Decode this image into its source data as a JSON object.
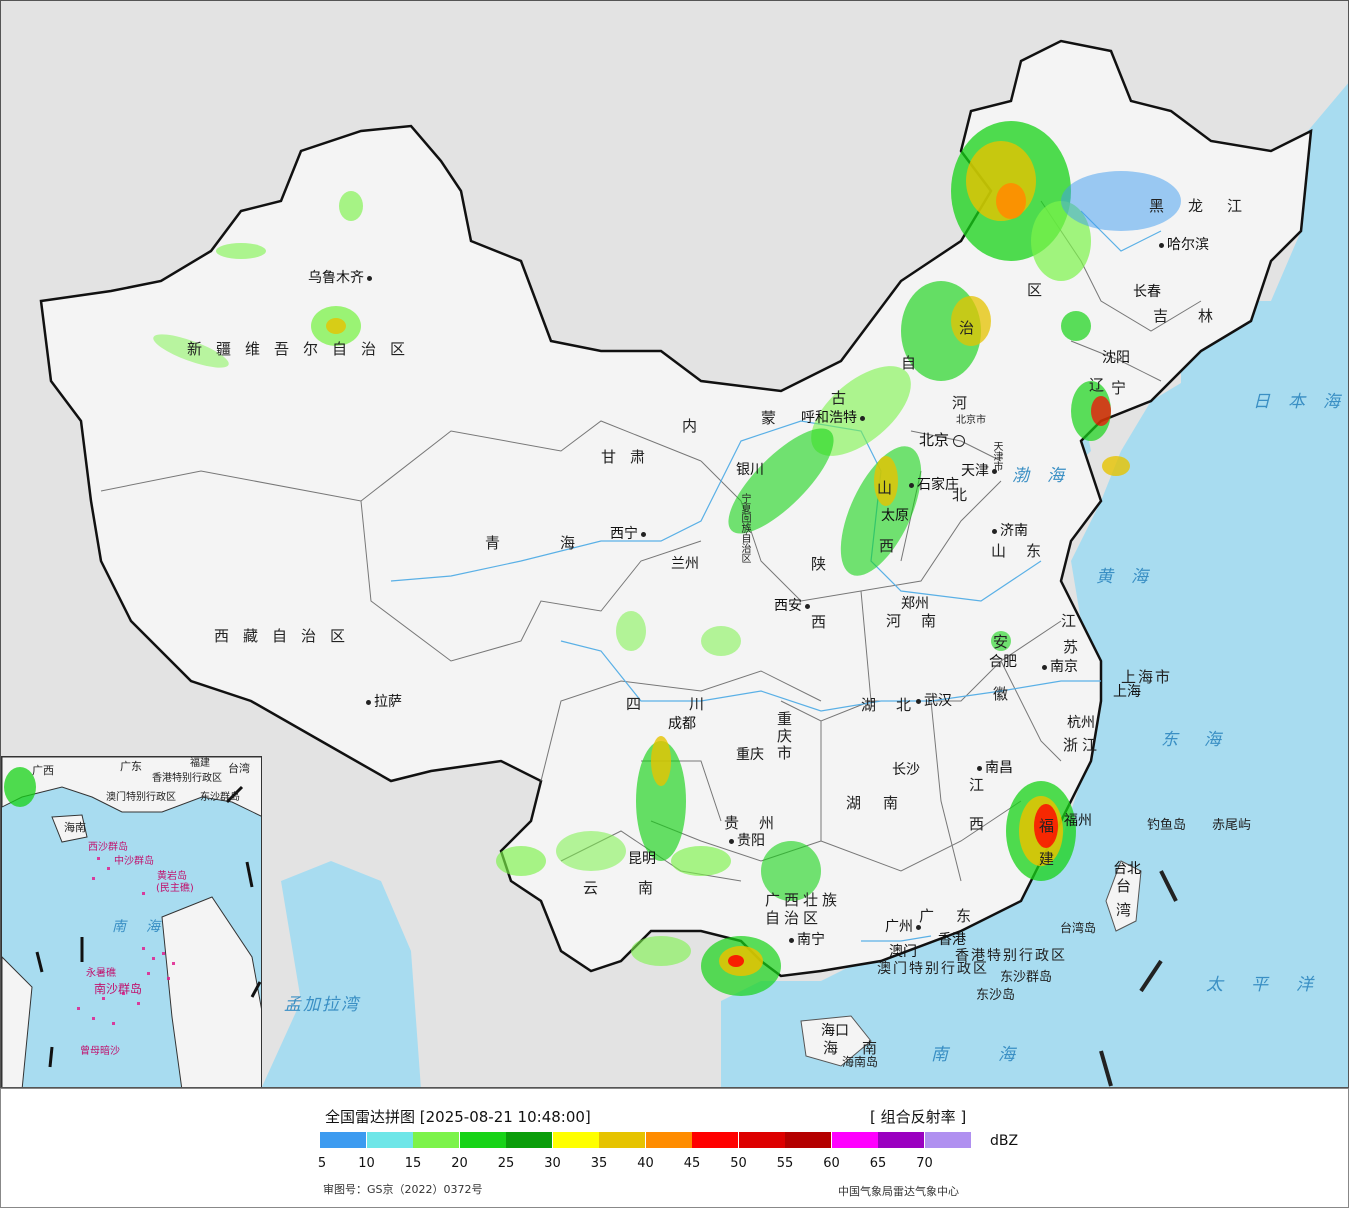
{
  "legend": {
    "title": "全国雷达拼图 [2025-08-21 10:48:00]",
    "product": "[ 组合反射率 ]",
    "unit": "dBZ",
    "colors": [
      "#3d9bf0",
      "#6ee6e8",
      "#7cf34a",
      "#17d317",
      "#0a9d0a",
      "#ffff00",
      "#e6c300",
      "#ff8c00",
      "#ff0000",
      "#dd0000",
      "#b40000",
      "#ff00ff",
      "#9a00c0",
      "#b090f0"
    ],
    "ticks": [
      "5",
      "10",
      "15",
      "20",
      "25",
      "30",
      "35",
      "40",
      "45",
      "50",
      "55",
      "60",
      "65",
      "70"
    ],
    "approval": "审图号：GS京（2022）0372号",
    "agency": "中国气象局雷达气象中心"
  },
  "provinces": {
    "xinjiang": "新疆维吾尔自治区",
    "xizang": "西藏自治区",
    "qinghai": "青海",
    "gansu": "甘肃",
    "neimenggu_1": "内",
    "neimenggu_2": "蒙",
    "neimenggu_3": "古",
    "neimenggu_4": "自",
    "neimenggu_5": "治",
    "neimenggu_6": "区",
    "heilongjiang": "黑龙江",
    "jilin": "吉林",
    "liaoning_1": "辽",
    "liaoning_2": "宁",
    "hebei_1": "河",
    "hebei_2": "北",
    "shanxi_1": "山",
    "shanxi_2": "西",
    "shaanxi_1": "陕",
    "shaanxi_2": "西",
    "shandong": "山东",
    "henan": "河南",
    "jiangsu_1": "江",
    "jiangsu_2": "苏",
    "anhui_1": "安",
    "anhui_2": "徽",
    "hubei": "湖北",
    "sichuan": "四川",
    "chongqing": "重庆市",
    "guizhou": "贵州",
    "yunnan": "云南",
    "hunan": "湖南",
    "jiangxi_1": "江",
    "jiangxi_2": "西",
    "zhejiang": "浙江",
    "fujian_1": "福",
    "fujian_2": "建",
    "guangxi_1": "广西壮族",
    "guangxi_2": "自治区",
    "guangdong": "广东",
    "hainan": "海南",
    "taiwan_1": "台",
    "taiwan_2": "湾",
    "ningxia_1": "宁",
    "ningxia_2": "夏",
    "ningxia_3": "回",
    "ningxia_4": "族",
    "ningxia_5": "自",
    "ningxia_6": "治",
    "ningxia_7": "区",
    "shanghai": "上海市",
    "tianjin": "天津市",
    "beijing": "北京市",
    "hongkong": "香港特别行政区",
    "macau": "澳门特别行政区"
  },
  "cities": {
    "urumqi": "乌鲁木齐",
    "lhasa": "拉萨",
    "xining": "西宁",
    "lanzhou": "兰州",
    "yinchuan": "银川",
    "hohhot": "呼和浩特",
    "beijing": "北京",
    "tianjin": "天津",
    "shijiazhuang": "石家庄",
    "taiyuan": "太原",
    "jinan": "济南",
    "zhengzhou": "郑州",
    "xian": "西安",
    "hefei": "合肥",
    "nanjing": "南京",
    "shanghai": "上海",
    "hangzhou": "杭州",
    "wuhan": "武汉",
    "chengdu": "成都",
    "chongqing": "重庆",
    "guiyang": "贵阳",
    "kunming": "昆明",
    "changsha": "长沙",
    "nanchang": "南昌",
    "fuzhou": "福州",
    "taipei": "台北",
    "nanning": "南宁",
    "guangzhou": "广州",
    "hongkong": "香港",
    "macau": "澳门",
    "haikou": "海口",
    "shenyang": "沈阳",
    "changchun": "长春",
    "harbin": "哈尔滨"
  },
  "islands": {
    "diaoyu": "钓鱼岛",
    "chiwei": "赤尾屿",
    "taiwan_island": "台湾岛",
    "dongsha_islands": "东沙群岛",
    "dongsha_island": "东沙岛",
    "hainan_island": "海南岛"
  },
  "seas": {
    "japan_sea": "日本海",
    "bohai": "渤海",
    "yellow_sea": "黄海",
    "east_sea": "东海",
    "pacific": "太平洋",
    "south_sea": "南海",
    "bengal": "孟加拉湾"
  },
  "inset": {
    "south_sea": "南海",
    "guangdong": "广东",
    "fujian": "福建",
    "taiwan": "台湾",
    "guangxi": "广西",
    "hongkong": "香港特别行政区",
    "macau": "澳门特别行政区",
    "dongsha": "东沙群岛",
    "hainan": "海南",
    "xisha": "西沙群岛",
    "zhongsha": "中沙群岛",
    "huangyan": "黄岩岛",
    "minzhu": "(民主礁)",
    "nansha": "南沙群岛",
    "yongshu": "永暑礁",
    "zengmu": "曾母暗沙"
  }
}
